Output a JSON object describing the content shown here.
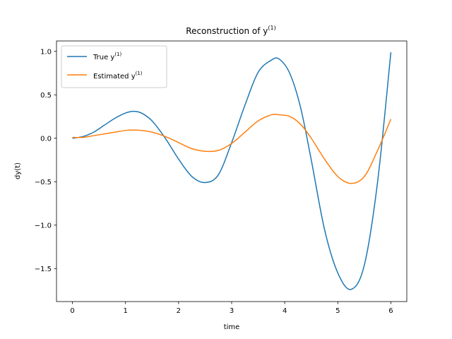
{
  "chart_data": {
    "type": "line",
    "title": "Reconstruction of y",
    "title_sup": "(1)",
    "xlabel": "time",
    "ylabel": "dy(t)",
    "xlim": [
      -0.3,
      6.3
    ],
    "ylim": [
      -1.88,
      1.12
    ],
    "xticks": [
      0,
      1,
      2,
      3,
      4,
      5,
      6
    ],
    "xtick_labels": [
      "0",
      "1",
      "2",
      "3",
      "4",
      "5",
      "6"
    ],
    "yticks": [
      -1.5,
      -1.0,
      -0.5,
      0.0,
      0.5,
      1.0
    ],
    "ytick_labels": [
      "−1.5",
      "−1.0",
      "−0.5",
      "0.0",
      "0.5",
      "1.0"
    ],
    "grid": false,
    "legend_position": "top-left",
    "x": [
      0.0,
      0.2,
      0.4,
      0.6,
      0.8,
      1.0,
      1.15,
      1.3,
      1.5,
      1.75,
      2.0,
      2.25,
      2.5,
      2.75,
      3.0,
      3.25,
      3.5,
      3.75,
      3.9,
      4.1,
      4.3,
      4.5,
      4.75,
      5.0,
      5.25,
      5.5,
      5.75,
      6.0
    ],
    "series": [
      {
        "name": "True y",
        "name_sup": "(1)",
        "color": "#1f77b4",
        "values": [
          0.0,
          0.02,
          0.07,
          0.15,
          0.23,
          0.29,
          0.31,
          0.29,
          0.2,
          0.0,
          -0.24,
          -0.44,
          -0.51,
          -0.42,
          -0.05,
          0.38,
          0.76,
          0.9,
          0.91,
          0.74,
          0.35,
          -0.25,
          -1.05,
          -1.55,
          -1.74,
          -1.46,
          -0.5,
          0.99
        ]
      },
      {
        "name": "Estimated y",
        "name_sup": "(1)",
        "color": "#ff7f0e",
        "values": [
          0.01,
          0.01,
          0.03,
          0.05,
          0.07,
          0.09,
          0.095,
          0.09,
          0.07,
          0.02,
          -0.05,
          -0.12,
          -0.15,
          -0.14,
          -0.06,
          0.07,
          0.2,
          0.27,
          0.27,
          0.25,
          0.16,
          0.0,
          -0.24,
          -0.44,
          -0.52,
          -0.44,
          -0.14,
          0.22
        ]
      }
    ]
  }
}
